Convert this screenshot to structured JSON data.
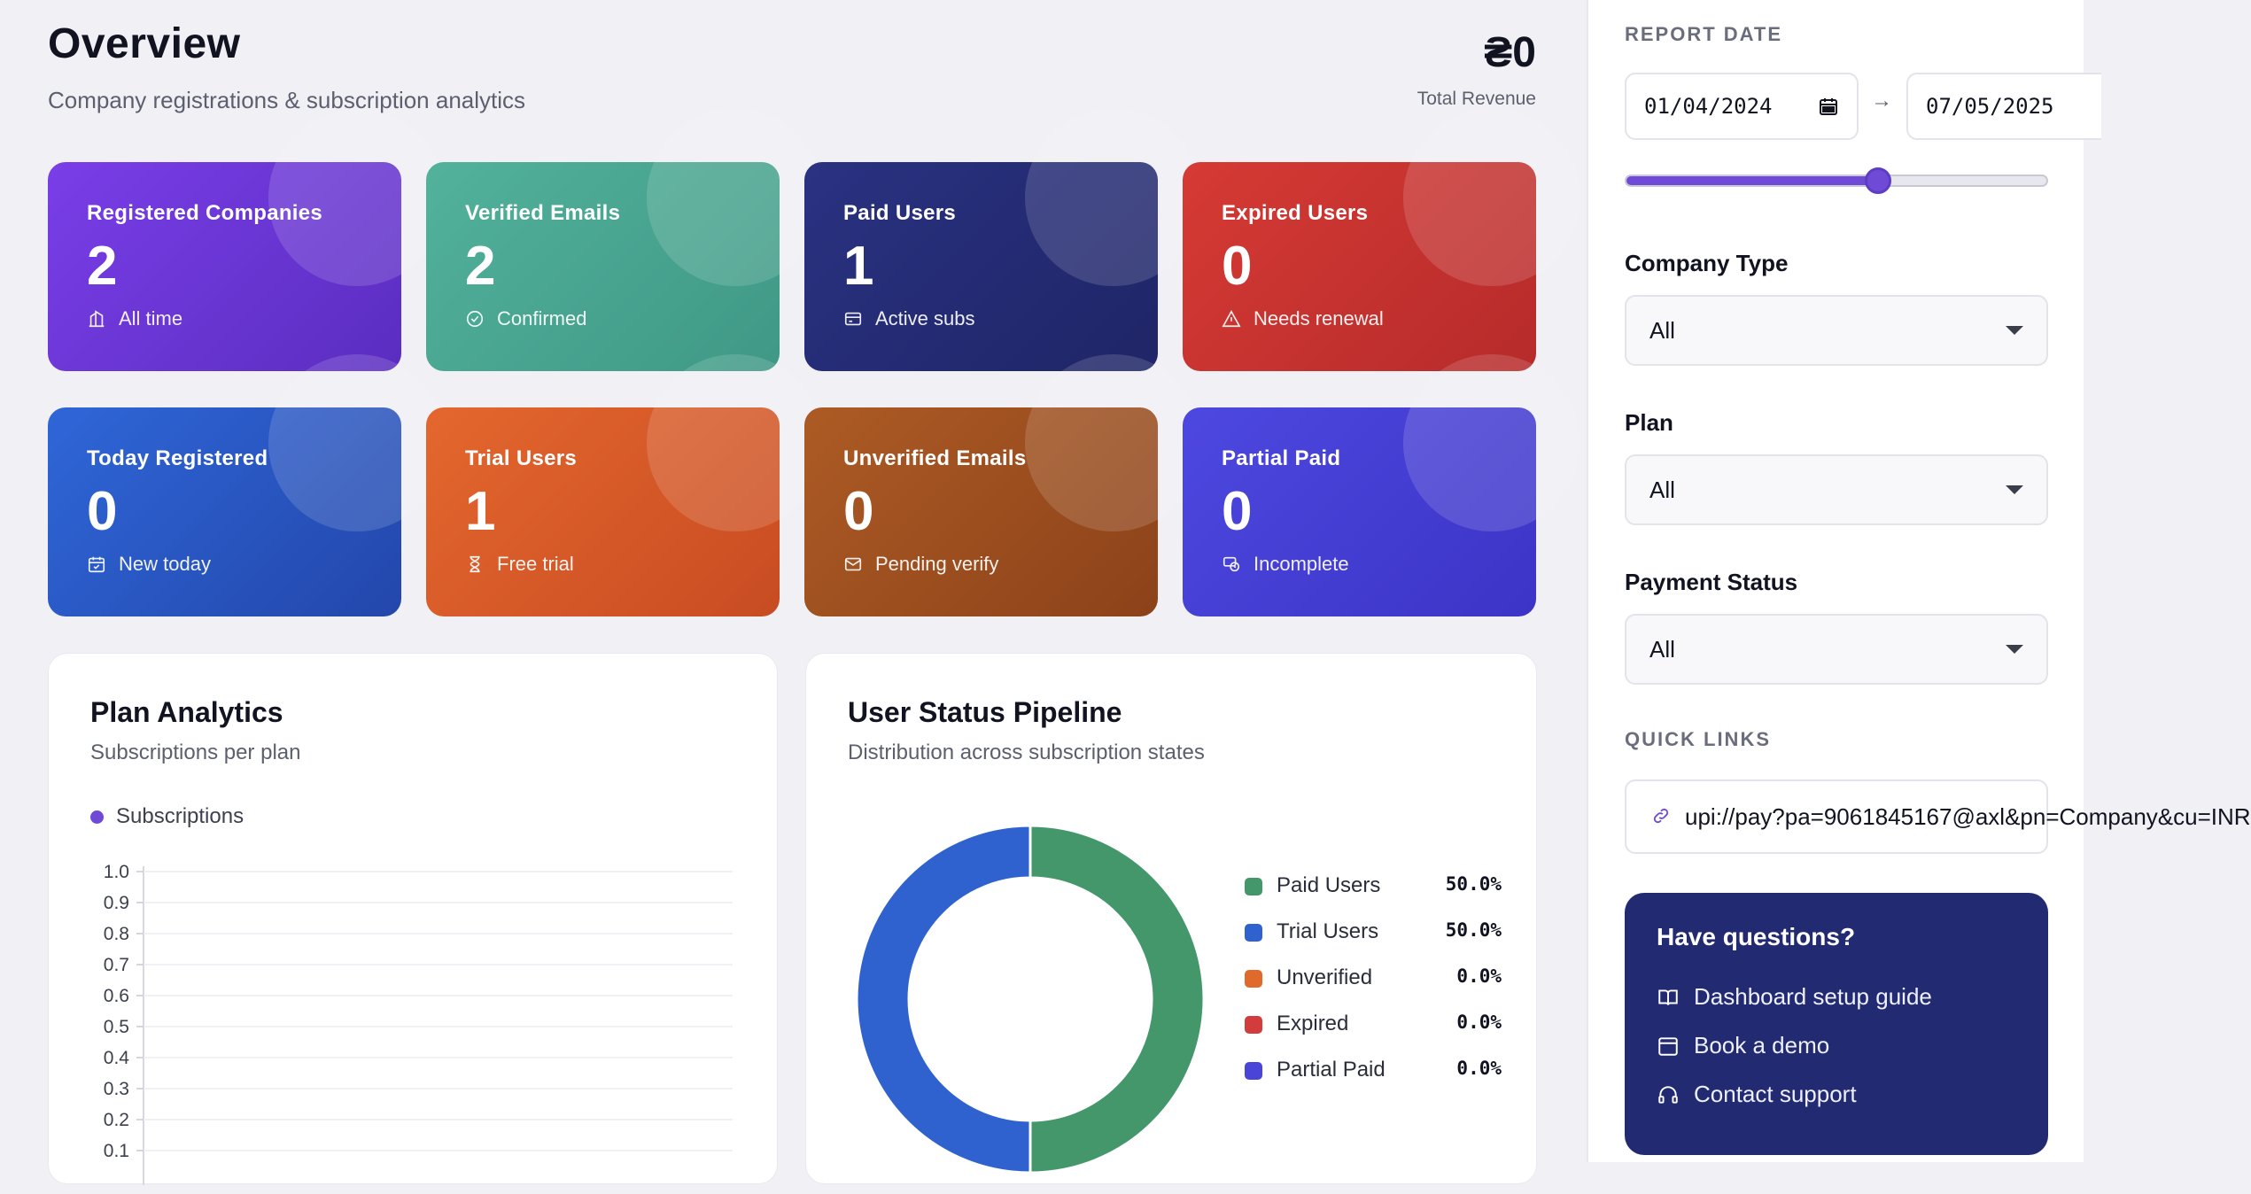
{
  "header": {
    "title": "Overview",
    "subtitle": "Company registrations & subscription analytics",
    "revenue_value": "₴0",
    "revenue_label": "Total Revenue"
  },
  "cards": [
    {
      "label": "Registered Companies",
      "value": "2",
      "sub": "All time",
      "icon": "building-icon",
      "color": "#6b35d6"
    },
    {
      "label": "Verified Emails",
      "value": "2",
      "sub": "Confirmed",
      "icon": "check-circle-icon",
      "color": "#4aa892"
    },
    {
      "label": "Paid Users",
      "value": "1",
      "sub": "Active subs",
      "icon": "credit-card-icon",
      "color": "#252c74"
    },
    {
      "label": "Expired Users",
      "value": "0",
      "sub": "Needs renewal",
      "icon": "warning-icon",
      "color": "#c83434"
    },
    {
      "label": "Today Registered",
      "value": "0",
      "sub": "New today",
      "icon": "calendar-check-icon",
      "color": "#2a58c8"
    },
    {
      "label": "Trial Users",
      "value": "1",
      "sub": "Free trial",
      "icon": "hourglass-icon",
      "color": "#d85a26"
    },
    {
      "label": "Unverified Emails",
      "value": "0",
      "sub": "Pending verify",
      "icon": "envelope-icon",
      "color": "#a1521f"
    },
    {
      "label": "Partial Paid",
      "value": "0",
      "sub": "Incomplete",
      "icon": "clock-money-icon",
      "color": "#4a44d8"
    }
  ],
  "plan_panel": {
    "title": "Plan Analytics",
    "subtitle": "Subscriptions per plan"
  },
  "pipeline_panel": {
    "title": "User Status Pipeline",
    "subtitle": "Distribution across subscription states"
  },
  "chart_data": [
    {
      "type": "bar",
      "title": "Plan Analytics",
      "series": [
        {
          "name": "Subscriptions",
          "values": [],
          "color": "#6f4ad6"
        }
      ],
      "categories": [],
      "y_ticks": [
        "1.0",
        "0.9",
        "0.8",
        "0.7",
        "0.6",
        "0.5",
        "0.4",
        "0.3",
        "0.2",
        "0.1"
      ],
      "ylim": [
        0,
        1.0
      ],
      "grid": true,
      "legend": "top-left"
    },
    {
      "type": "pie",
      "title": "User Status Pipeline",
      "donut": true,
      "slices": [
        {
          "name": "Paid Users",
          "value": 50.0,
          "label": "50.0%",
          "color": "#43976b"
        },
        {
          "name": "Trial Users",
          "value": 50.0,
          "label": "50.0%",
          "color": "#2f62cf"
        },
        {
          "name": "Unverified",
          "value": 0.0,
          "label": "0.0%",
          "color": "#e06a2c"
        },
        {
          "name": "Expired",
          "value": 0.0,
          "label": "0.0%",
          "color": "#d33c3c"
        },
        {
          "name": "Partial Paid",
          "value": 0.0,
          "label": "0.0%",
          "color": "#4a44d8"
        }
      ],
      "legend": "right"
    }
  ],
  "sidebar": {
    "report_date_heading": "REPORT DATE",
    "date_from": "01/04/2024",
    "date_to": "07/05/2025",
    "arrow": "→",
    "range_slider_value": 0.6,
    "company_type": {
      "label": "Company Type",
      "value": "All"
    },
    "plan": {
      "label": "Plan",
      "value": "All"
    },
    "payment_status": {
      "label": "Payment Status",
      "value": "All"
    },
    "quick_links_heading": "QUICK LINKS",
    "quick_link": "upi://pay?pa=9061845167@axl&pn=Company&cu=INR",
    "help": {
      "title": "Have questions?",
      "items": [
        {
          "label": "Dashboard setup guide",
          "icon": "book-icon"
        },
        {
          "label": "Book a demo",
          "icon": "calendar-grid-icon"
        },
        {
          "label": "Contact support",
          "icon": "headset-icon"
        }
      ]
    }
  }
}
